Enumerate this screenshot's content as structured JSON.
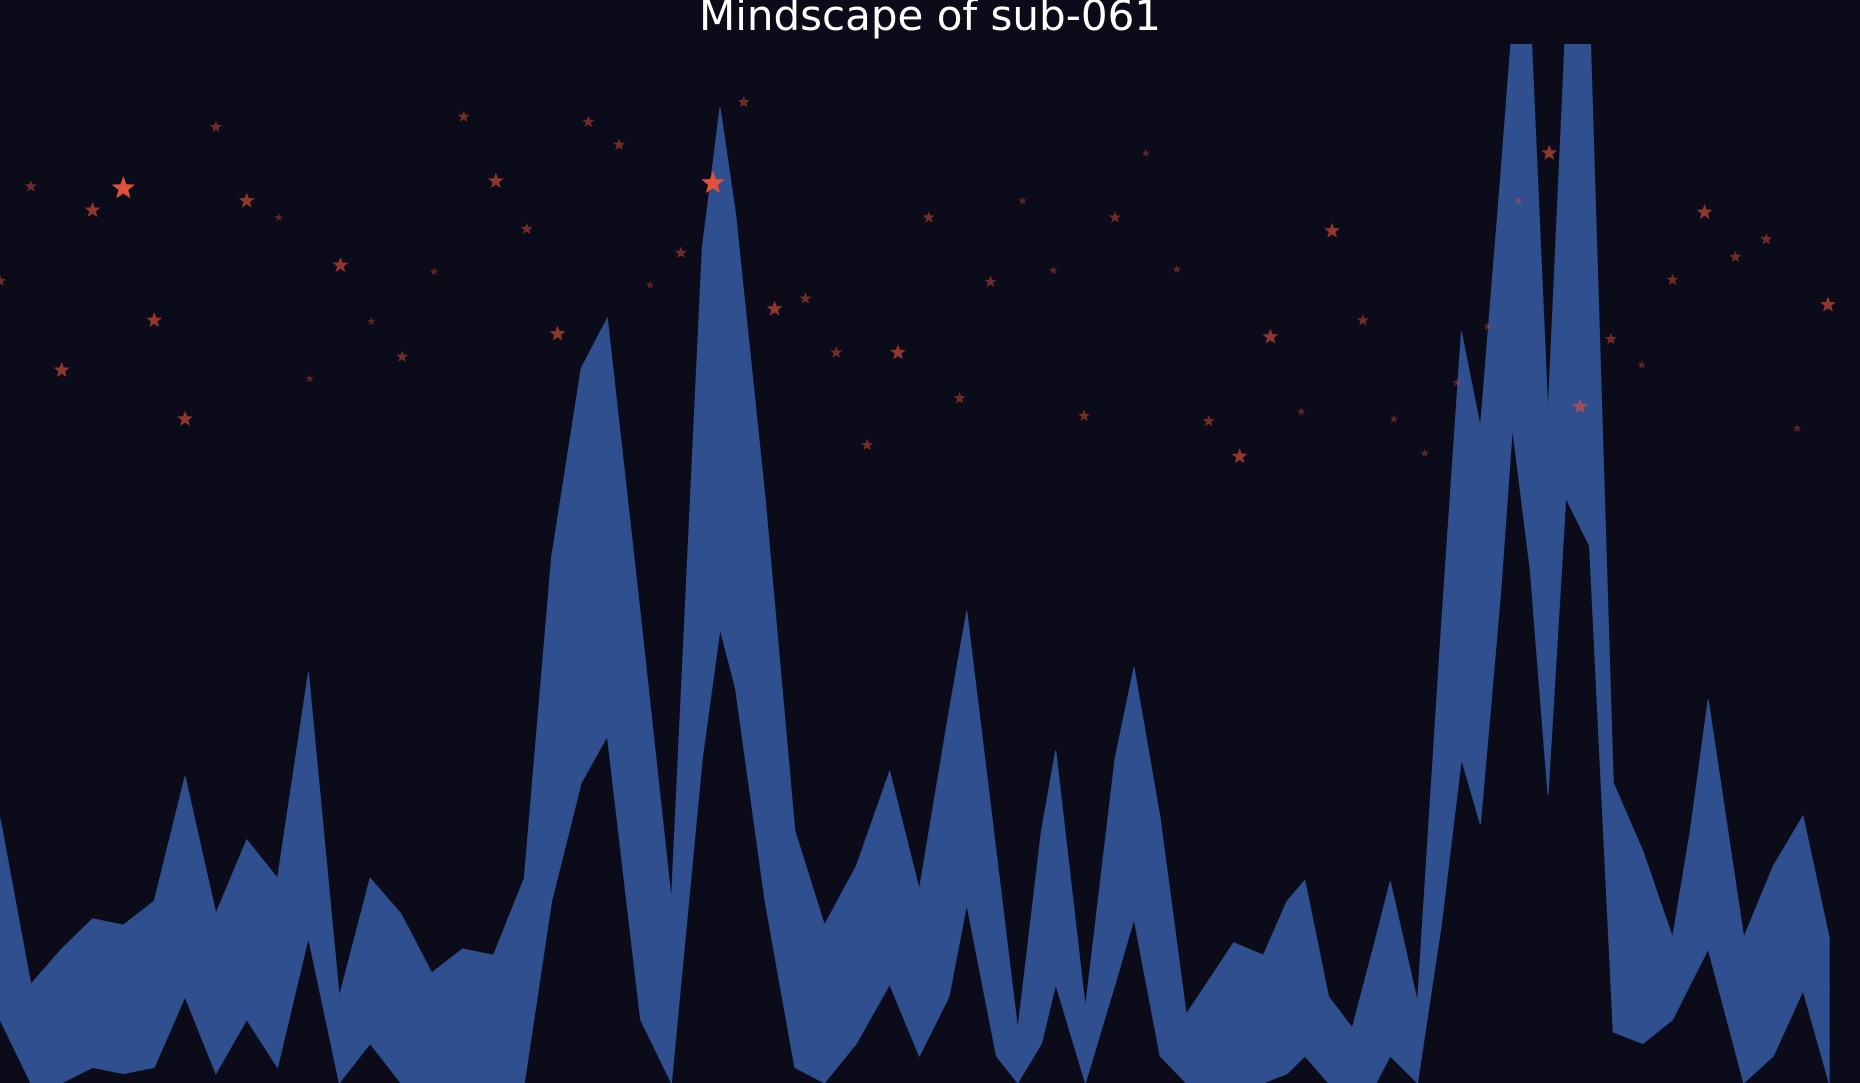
{
  "chart_data": {
    "type": "band",
    "title": "Mindscape of sub-061",
    "xlim": [
      0,
      1568
    ],
    "ylim": [
      0,
      100
    ],
    "band_color": "#2f4f8f",
    "background": "#0b0b19",
    "x": [
      0,
      26,
      52,
      78,
      104,
      130,
      156,
      182,
      208,
      234,
      260,
      286,
      312,
      338,
      364,
      390,
      416,
      442,
      465,
      490,
      512,
      540,
      566,
      592,
      607,
      620,
      645,
      670,
      695,
      722,
      750,
      775,
      800,
      815,
      840,
      858,
      878,
      890,
      915,
      940,
      956,
      978,
      1000,
      1040,
      1065,
      1085,
      1100,
      1120,
      1140,
      1160,
      1172,
      1195,
      1215,
      1232,
      1248,
      1265,
      1275,
      1290,
      1305,
      1320,
      1340,
      1360,
      1385,
      1410,
      1425,
      1440,
      1470,
      1495,
      1520,
      1542
    ],
    "upper": [
      25.5,
      9.5,
      12.9,
      15.8,
      15.2,
      17.5,
      29.5,
      16.3,
      23.4,
      19.7,
      39.5,
      8.3,
      19.7,
      16.3,
      10.6,
      12.9,
      12.3,
      19.7,
      50.6,
      68.8,
      73.6,
      44.9,
      17.5,
      80.3,
      93.9,
      83.7,
      56.3,
      24.3,
      15.2,
      20.9,
      30.0,
      18.6,
      35.7,
      45.4,
      22.0,
      5.1,
      24.3,
      32.0,
      7.2,
      31.2,
      40.0,
      25.5,
      6.6,
      13.5,
      12.3,
      17.5,
      19.5,
      8.3,
      5.3,
      14.0,
      19.4,
      7.8,
      43.7,
      72.3,
      63.1,
      87.1,
      102,
      103,
      64.3,
      102,
      103,
      28.9,
      22.3,
      14.0,
      24.3,
      36.9,
      14.0,
      20.9,
      25.7,
      14.0
    ],
    "lower": [
      6.1,
      0,
      0,
      1.5,
      0.9,
      1.5,
      8.3,
      0.9,
      6.1,
      1.5,
      14.0,
      0,
      3.8,
      0,
      0,
      0,
      0,
      0,
      17.5,
      28.9,
      33.4,
      6.1,
      0,
      31.2,
      43.7,
      38.0,
      17.5,
      1.5,
      0,
      3.8,
      9.5,
      2.6,
      8.3,
      17.2,
      2.6,
      0,
      3.8,
      9.5,
      0,
      9.5,
      15.8,
      2.6,
      0,
      0,
      0,
      0.9,
      2.6,
      0,
      0,
      0,
      2.6,
      0,
      15.2,
      31.2,
      24.9,
      47.1,
      63.1,
      49.4,
      27.7,
      56.3,
      51.7,
      4.9,
      3.8,
      6.1,
      9.5,
      12.9,
      0,
      2.6,
      8.9,
      0
    ],
    "stars": {
      "color": "#e0503a",
      "x": [
        26,
        104,
        78,
        182,
        208,
        235,
        287,
        130,
        52,
        156,
        0,
        261,
        313,
        339,
        366,
        391,
        418,
        444,
        470,
        496,
        522,
        548,
        574,
        601,
        627,
        653,
        679,
        705,
        731,
        757,
        783,
        809,
        835,
        862,
        888,
        914,
        940,
        966,
        992,
        1019,
        1045,
        1071,
        1097,
        1123,
        1149,
        1175,
        1201,
        1228,
        1254,
        1280,
        1306,
        1332,
        1358,
        1384,
        1410,
        1437,
        1463,
        1489,
        1515,
        1541
      ],
      "y": [
        86.3,
        86.1,
        84.0,
        92.0,
        84.9,
        83.3,
        78.7,
        73.4,
        68.6,
        63.9,
        77.2,
        67.8,
        73.3,
        69.9,
        78.1,
        93.0,
        86.8,
        82.2,
        72.1,
        92.5,
        90.3,
        76.8,
        79.9,
        86.6,
        94.4,
        74.5,
        75.5,
        70.3,
        61.4,
        70.3,
        83.3,
        65.9,
        77.1,
        84.9,
        78.2,
        64.2,
        83.3,
        89.5,
        78.3,
        63.7,
        60.3,
        71.8,
        64.6,
        82.0,
        73.4,
        63.9,
        60.6,
        67.4,
        72.8,
        84.9,
        89.5,
        65.1,
        71.6,
        69.1,
        77.3,
        83.8,
        79.5,
        81.2,
        63.0,
        74.9
      ],
      "sizes": [
        40,
        150,
        70,
        40,
        70,
        20,
        70,
        70,
        70,
        70,
        40,
        20,
        20,
        40,
        20,
        40,
        70,
        40,
        70,
        40,
        40,
        20,
        40,
        150,
        40,
        70,
        40,
        40,
        40,
        70,
        40,
        40,
        40,
        20,
        20,
        40,
        40,
        20,
        20,
        40,
        70,
        70,
        20,
        70,
        40,
        20,
        20,
        20,
        20,
        20,
        70,
        70,
        40,
        20,
        40,
        70,
        40,
        40,
        20,
        70
      ]
    }
  }
}
